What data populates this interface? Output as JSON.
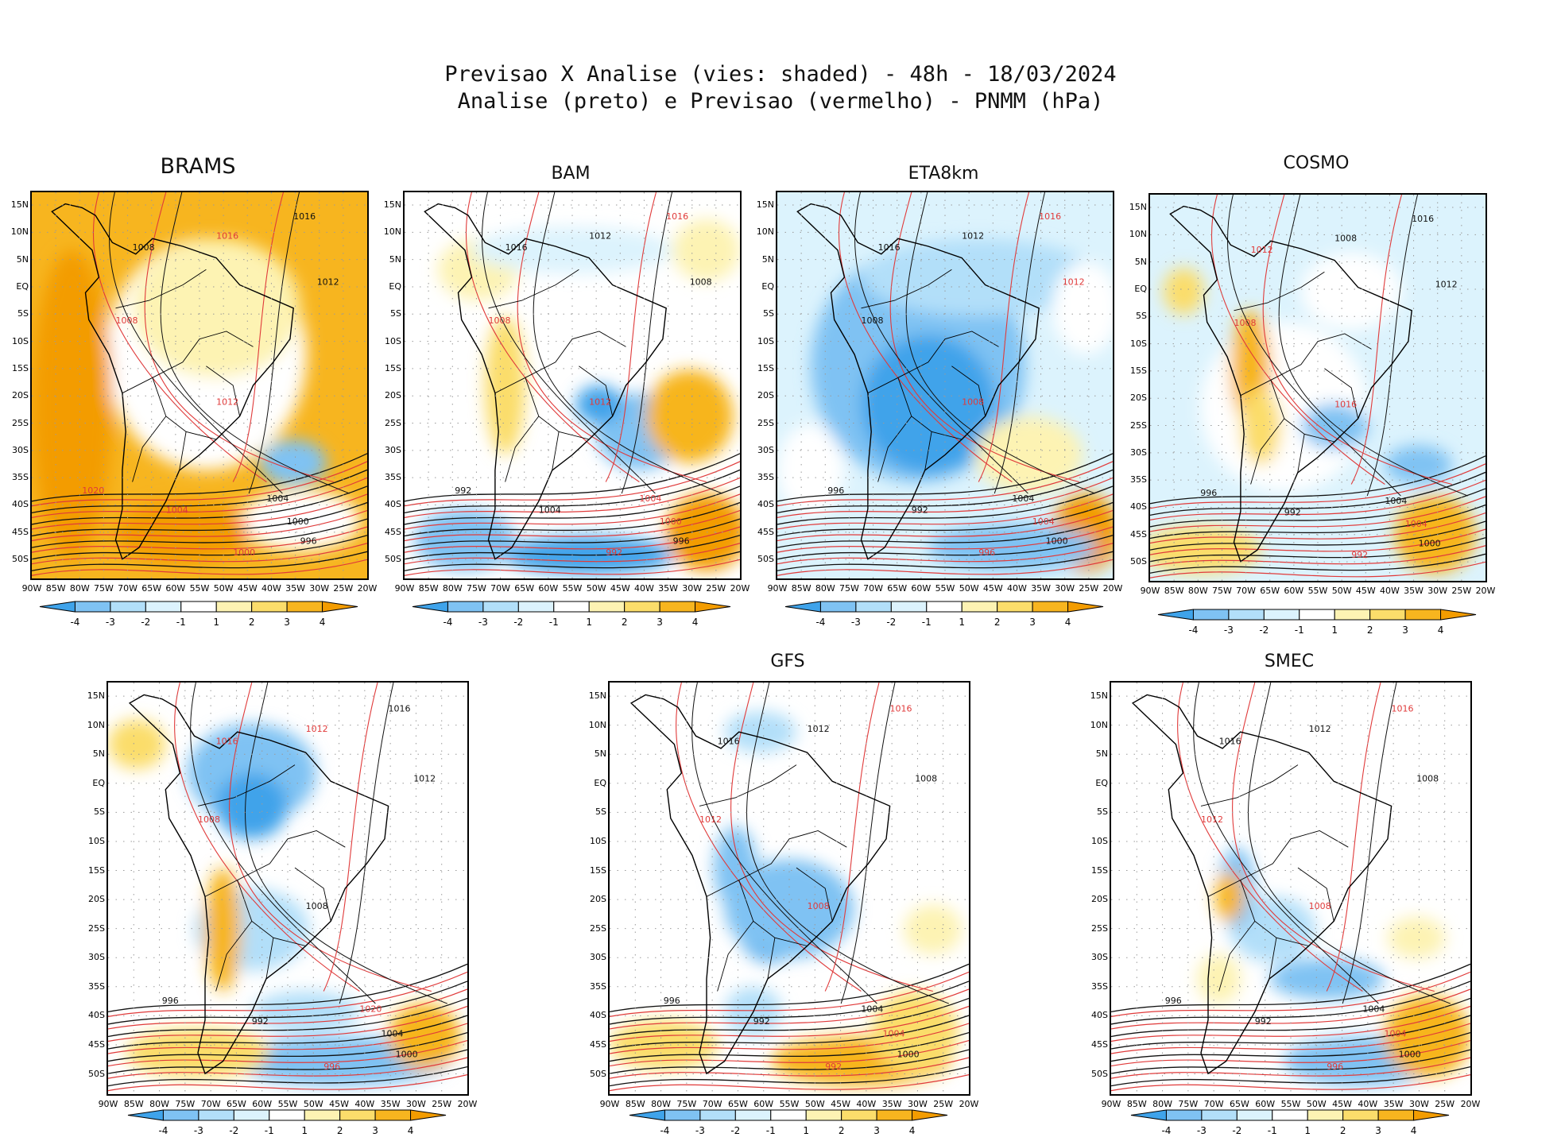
{
  "header": {
    "line1": "Previsao X Analise (vies: shaded) - 48h - 18/03/2024",
    "line2": "Analise (preto) e Previsao (vermelho) - PNMM (hPa)"
  },
  "axes": {
    "lat_labels": [
      "15N",
      "10N",
      "5N",
      "EQ",
      "5S",
      "10S",
      "15S",
      "20S",
      "25S",
      "30S",
      "35S",
      "40S",
      "45S",
      "50S"
    ],
    "lon_labels": [
      "90W",
      "85W",
      "80W",
      "75W",
      "70W",
      "65W",
      "60W",
      "55W",
      "50W",
      "45W",
      "40W",
      "35W",
      "30W",
      "25W",
      "20W"
    ]
  },
  "colorbar": {
    "labels": [
      "-4",
      "-3",
      "-2",
      "-1",
      "1",
      "2",
      "3",
      "4"
    ],
    "colors": [
      "#3fa3ea",
      "#7fc2f3",
      "#b2dff9",
      "#dcf3fd",
      "#ffffff",
      "#fdf3b3",
      "#fbdd6b",
      "#f7b51f",
      "#f39c00"
    ]
  },
  "isobar_colors": {
    "analysis": "#111111",
    "forecast": "#e03a3a"
  },
  "panels": [
    {
      "id": "brams",
      "title": "BRAMS",
      "labels": [
        {
          "t": "1016",
          "c": "k"
        },
        {
          "t": "1008",
          "c": "k"
        },
        {
          "t": "1012",
          "c": "k"
        },
        {
          "t": "1016",
          "c": "r"
        },
        {
          "t": "1008",
          "c": "r"
        },
        {
          "t": "1012",
          "c": "r"
        },
        {
          "t": "1004",
          "c": "k"
        },
        {
          "t": "1000",
          "c": "k"
        },
        {
          "t": "996",
          "c": "k"
        },
        {
          "t": "1020",
          "c": "r"
        },
        {
          "t": "1004",
          "c": "r"
        },
        {
          "t": "1000",
          "c": "r"
        }
      ]
    },
    {
      "id": "bam",
      "title": "BAM",
      "labels": [
        {
          "t": "1016",
          "c": "r"
        },
        {
          "t": "1016",
          "c": "k"
        },
        {
          "t": "1008",
          "c": "k"
        },
        {
          "t": "1012",
          "c": "k"
        },
        {
          "t": "1008",
          "c": "r"
        },
        {
          "t": "1012",
          "c": "r"
        },
        {
          "t": "1004",
          "c": "r"
        },
        {
          "t": "1000",
          "c": "r"
        },
        {
          "t": "996",
          "c": "k"
        },
        {
          "t": "992",
          "c": "k"
        },
        {
          "t": "1004",
          "c": "k"
        },
        {
          "t": "992",
          "c": "r"
        }
      ]
    },
    {
      "id": "eta8km",
      "title": "ETA8km",
      "labels": [
        {
          "t": "1016",
          "c": "r"
        },
        {
          "t": "1016",
          "c": "k"
        },
        {
          "t": "1012",
          "c": "r"
        },
        {
          "t": "1012",
          "c": "k"
        },
        {
          "t": "1008",
          "c": "k"
        },
        {
          "t": "1008",
          "c": "r"
        },
        {
          "t": "1004",
          "c": "k"
        },
        {
          "t": "1004",
          "c": "r"
        },
        {
          "t": "1000",
          "c": "k"
        },
        {
          "t": "996",
          "c": "k"
        },
        {
          "t": "992",
          "c": "k"
        },
        {
          "t": "996",
          "c": "r"
        }
      ]
    },
    {
      "id": "cosmo",
      "title": "COSMO",
      "labels": [
        {
          "t": "1016",
          "c": "k"
        },
        {
          "t": "1012",
          "c": "r"
        },
        {
          "t": "1012",
          "c": "k"
        },
        {
          "t": "1008",
          "c": "k"
        },
        {
          "t": "1008",
          "c": "r"
        },
        {
          "t": "1016",
          "c": "r"
        },
        {
          "t": "1004",
          "c": "k"
        },
        {
          "t": "1004",
          "c": "r"
        },
        {
          "t": "1000",
          "c": "k"
        },
        {
          "t": "996",
          "c": "k"
        },
        {
          "t": "992",
          "c": "k"
        },
        {
          "t": "992",
          "c": "r"
        }
      ]
    },
    {
      "id": "wrf",
      "title": "",
      "labels": [
        {
          "t": "1016",
          "c": "k"
        },
        {
          "t": "1016",
          "c": "r"
        },
        {
          "t": "1012",
          "c": "k"
        },
        {
          "t": "1012",
          "c": "r"
        },
        {
          "t": "1008",
          "c": "r"
        },
        {
          "t": "1008",
          "c": "k"
        },
        {
          "t": "1020",
          "c": "r"
        },
        {
          "t": "1004",
          "c": "k"
        },
        {
          "t": "1000",
          "c": "k"
        },
        {
          "t": "996",
          "c": "k"
        },
        {
          "t": "992",
          "c": "k"
        },
        {
          "t": "996",
          "c": "r"
        }
      ]
    },
    {
      "id": "gfs",
      "title": "GFS",
      "labels": [
        {
          "t": "1016",
          "c": "r"
        },
        {
          "t": "1016",
          "c": "k"
        },
        {
          "t": "1008",
          "c": "k"
        },
        {
          "t": "1012",
          "c": "k"
        },
        {
          "t": "1012",
          "c": "r"
        },
        {
          "t": "1008",
          "c": "r"
        },
        {
          "t": "1004",
          "c": "k"
        },
        {
          "t": "1004",
          "c": "r"
        },
        {
          "t": "1000",
          "c": "k"
        },
        {
          "t": "996",
          "c": "k"
        },
        {
          "t": "992",
          "c": "k"
        },
        {
          "t": "992",
          "c": "r"
        }
      ]
    },
    {
      "id": "smec",
      "title": "SMEC",
      "labels": [
        {
          "t": "1016",
          "c": "r"
        },
        {
          "t": "1016",
          "c": "k"
        },
        {
          "t": "1008",
          "c": "k"
        },
        {
          "t": "1012",
          "c": "k"
        },
        {
          "t": "1012",
          "c": "r"
        },
        {
          "t": "1008",
          "c": "r"
        },
        {
          "t": "1004",
          "c": "k"
        },
        {
          "t": "1004",
          "c": "r"
        },
        {
          "t": "1000",
          "c": "k"
        },
        {
          "t": "996",
          "c": "k"
        },
        {
          "t": "992",
          "c": "k"
        },
        {
          "t": "996",
          "c": "r"
        }
      ]
    }
  ]
}
